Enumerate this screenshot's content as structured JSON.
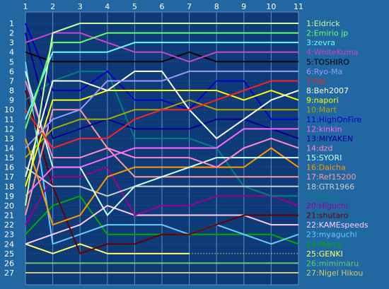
{
  "chart_data": {
    "type": "line",
    "title": "",
    "xlabel": "",
    "ylabel": "",
    "x": [
      1,
      2,
      3,
      4,
      5,
      6,
      7,
      8,
      9,
      10,
      11
    ],
    "ylim": [
      27,
      1
    ],
    "y_ticks": [
      1,
      2,
      3,
      4,
      5,
      6,
      7,
      8,
      9,
      10,
      11,
      12,
      13,
      14,
      15,
      16,
      17,
      18,
      19,
      20,
      21,
      22,
      23,
      24,
      25,
      26,
      27
    ],
    "grid": true,
    "legend": "right",
    "series": [
      {
        "name": "1:Eldrick",
        "color": "#ccff99",
        "values": [
          20,
          2,
          1,
          1,
          1,
          1,
          1,
          1,
          1,
          1,
          1
        ]
      },
      {
        "name": "2:Emirio jp",
        "color": "#66ff66",
        "values": [
          12,
          3,
          3,
          2,
          2,
          2,
          2,
          2,
          2,
          2,
          2
        ]
      },
      {
        "name": "3:zevra",
        "color": "#66ffff",
        "values": [
          11,
          4,
          4,
          4,
          3,
          3,
          3,
          3,
          3,
          3,
          3
        ]
      },
      {
        "name": "4:WhiteKuma",
        "color": "#cc44cc",
        "values": [
          3,
          2,
          2,
          3,
          4,
          4,
          5,
          4,
          4,
          4,
          4
        ]
      },
      {
        "name": "5:TOSHIRO",
        "color": "#000000",
        "values": [
          4,
          5,
          5,
          5,
          5,
          5,
          4,
          5,
          5,
          5,
          5
        ]
      },
      {
        "name": "6:Ryo-Ma",
        "color": "#9999ff",
        "values": [
          14,
          11,
          10,
          7,
          7,
          7,
          6,
          6,
          6,
          6,
          6
        ]
      },
      {
        "name": "7:fuji",
        "color": "#ff2222",
        "values": [
          10,
          14,
          13,
          13,
          11,
          10,
          10,
          9,
          8,
          7,
          7
        ]
      },
      {
        "name": "8:Beh2007",
        "color": "#ffffff",
        "values": [
          17,
          7,
          7,
          8,
          6,
          6,
          10,
          13,
          11,
          9,
          8
        ]
      },
      {
        "name": "9:napori",
        "color": "#ffff00",
        "values": [
          18,
          9,
          9,
          8,
          8,
          8,
          8,
          8,
          9,
          8,
          9
        ]
      },
      {
        "name": "10:Mart",
        "color": "#aaaa00",
        "values": [
          15,
          12,
          11,
          11,
          10,
          10,
          9,
          10,
          10,
          10,
          10
        ]
      },
      {
        "name": "11:HighOnFire",
        "color": "#0000cc",
        "values": [
          1,
          8,
          8,
          6,
          9,
          9,
          10,
          7,
          7,
          11,
          11
        ]
      },
      {
        "name": "12:kinkin",
        "color": "#ff66ff",
        "values": [
          19,
          16,
          16,
          15,
          14,
          14,
          14,
          14,
          12,
          12,
          12
        ]
      },
      {
        "name": "13:MIYAKEN",
        "color": "#000099",
        "values": [
          2,
          13,
          12,
          11,
          12,
          12,
          12,
          11,
          11,
          12,
          13
        ]
      },
      {
        "name": "14:dzd",
        "color": "#ff88cc",
        "values": [
          7,
          15,
          15,
          14,
          15,
          15,
          15,
          16,
          14,
          13,
          14
        ]
      },
      {
        "name": "15:SYORI",
        "color": "#ccffff",
        "values": [
          6,
          16,
          16,
          21,
          18,
          17,
          16,
          15,
          15,
          15,
          15
        ]
      },
      {
        "name": "16:Daicha",
        "color": "#ff9900",
        "values": [
          13,
          22,
          21,
          17,
          16,
          16,
          16,
          16,
          16,
          14,
          16
        ]
      },
      {
        "name": "17:Ref15200",
        "color": "#ff9999",
        "values": [
          21,
          10,
          10,
          14,
          17,
          17,
          17,
          17,
          17,
          17,
          17
        ]
      },
      {
        "name": "18:GTR1966",
        "color": "#cccccc",
        "values": [
          16,
          18,
          18,
          19,
          18,
          18,
          18,
          18,
          18,
          18,
          18
        ]
      },
      {
        "name": "19:Negi",
        "color": "#008080",
        "values": [
          9,
          7,
          6,
          6,
          13,
          13,
          13,
          14,
          18,
          19,
          19
        ]
      },
      {
        "name": "20:Higuchi",
        "color": "#990099",
        "values": [
          22,
          17,
          17,
          16,
          21,
          20,
          20,
          19,
          19,
          19,
          20
        ]
      },
      {
        "name": "21:shutaro",
        "color": "#660000",
        "values": [
          8,
          18,
          25,
          24,
          24,
          23,
          23,
          22,
          21,
          21,
          21
        ]
      },
      {
        "name": "22:KAMEspeeds",
        "color": "#ffccff",
        "values": [
          24,
          23,
          22,
          20,
          21,
          21,
          21,
          21,
          21,
          22,
          22
        ]
      },
      {
        "name": "23:myaguchi",
        "color": "#66ccff",
        "values": [
          5,
          24,
          23,
          22,
          22,
          22,
          23,
          22,
          23,
          24,
          23
        ]
      },
      {
        "name": "24:Marcy",
        "color": "#00aa00",
        "values": [
          23,
          20,
          19,
          23,
          23,
          23,
          23,
          23,
          23,
          23,
          24
        ]
      },
      {
        "name": "25:GENKI",
        "color": "#ffff66",
        "values": [
          24,
          25,
          24,
          25,
          25,
          25,
          25,
          null,
          null,
          null,
          null
        ]
      },
      {
        "name": "26:mimimaru",
        "color": "#66cc66",
        "values": [
          26,
          26,
          26,
          26,
          26,
          26,
          26,
          26,
          26,
          26,
          26
        ]
      },
      {
        "name": "27:Nigel Hikou",
        "color": "#cccc66",
        "values": [
          27,
          27,
          27,
          27,
          27,
          27,
          27,
          27,
          27,
          27,
          27
        ]
      }
    ]
  }
}
